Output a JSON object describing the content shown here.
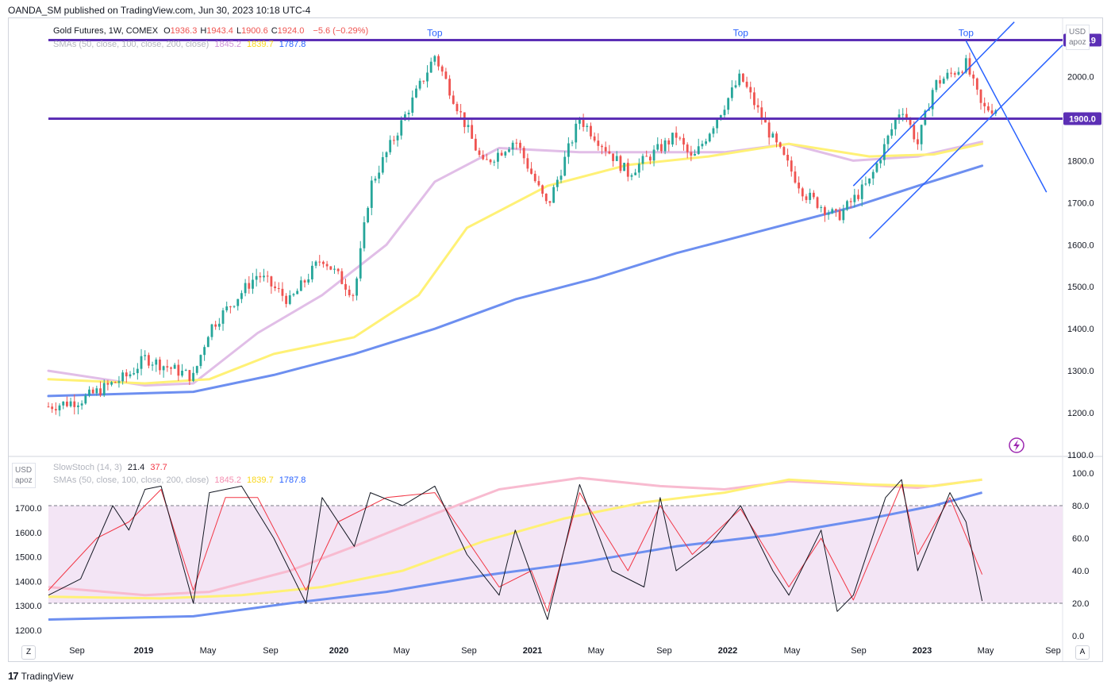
{
  "header": {
    "text": "OANDA_SM published on TradingView.com, Jun 30, 2023 10:18 UTC-4"
  },
  "footer": {
    "brand": "TradingView"
  },
  "legend": {
    "title": "Gold Futures, 1W, COMEX",
    "ohlc": [
      {
        "k": "O",
        "v": "1936.3"
      },
      {
        "k": "H",
        "v": "1943.4"
      },
      {
        "k": "L",
        "v": "1900.6"
      },
      {
        "k": "C",
        "v": "1924.0"
      }
    ],
    "change": "−5.6 (−0.29%)",
    "sma_label": "SMAs (50, close, 100, close, 200, close)",
    "sma_values": [
      "1845.2",
      "1839.7",
      "1787.8"
    ]
  },
  "stoch_legend": {
    "label": "SlowStoch (14, 3)",
    "k": "21.4",
    "d": "37.7",
    "sma_label": "SMAs (50, close, 100, close, 200, close)",
    "sma_values": [
      "1845.2",
      "1839.7",
      "1787.8"
    ]
  },
  "currency": "USD",
  "scale_mode": "apoz",
  "colors": {
    "up": "#26a69a",
    "down": "#ef5350",
    "sma50": "#e1bee7",
    "sma100": "#fff176",
    "sma200": "#6d8ff0",
    "hline": "#5c2fb5",
    "channel": "#2962ff",
    "k": "#131722",
    "d": "#f23645",
    "band": "#f3e5f5"
  },
  "price_axis": {
    "ticks": [
      "2000.0",
      "1900.0",
      "1800.0",
      "1700.0",
      "1600.0",
      "1500.0",
      "1400.0",
      "1300.0",
      "1200.0",
      "1100.0"
    ],
    "highlighted": [
      "2086.9",
      "1900.0"
    ]
  },
  "stoch_axis": {
    "ticks": [
      "100.0",
      "80.0",
      "60.0",
      "40.0",
      "20.0",
      "0.0"
    ]
  },
  "stoch_left_axis": {
    "ticks": [
      "1700.0",
      "1600.0",
      "1500.0",
      "1400.0",
      "1300.0",
      "1200.0"
    ]
  },
  "time_axis": {
    "labels": [
      "Sep",
      "2019",
      "May",
      "Sep",
      "2020",
      "May",
      "Sep",
      "2021",
      "May",
      "Sep",
      "2022",
      "May",
      "Sep",
      "2023",
      "May",
      "Sep"
    ]
  },
  "annotations": [
    "Top",
    "Top",
    "Top"
  ],
  "buttons": {
    "goto_start": "Z",
    "auto": "A"
  },
  "chart_data": {
    "type": "candlestick",
    "symbol": "Gold Futures, 1W, COMEX",
    "y_range": [
      1100,
      2120
    ],
    "resistance_levels": [
      2086.9,
      1900.0
    ],
    "key_points": [
      {
        "date": "2018-08",
        "close": 1215
      },
      {
        "date": "2018-10",
        "close": 1230
      },
      {
        "date": "2019-01",
        "close": 1290
      },
      {
        "date": "2019-02",
        "close": 1330
      },
      {
        "date": "2019-05",
        "close": 1285
      },
      {
        "date": "2019-06",
        "close": 1400
      },
      {
        "date": "2019-09",
        "close": 1530
      },
      {
        "date": "2019-11",
        "close": 1465
      },
      {
        "date": "2020-01",
        "close": 1570
      },
      {
        "date": "2020-03",
        "close": 1480
      },
      {
        "date": "2020-04",
        "close": 1740
      },
      {
        "date": "2020-08",
        "close": 2050
      },
      {
        "date": "2020-11",
        "close": 1790
      },
      {
        "date": "2021-01",
        "close": 1850
      },
      {
        "date": "2021-03",
        "close": 1690
      },
      {
        "date": "2021-05",
        "close": 1900
      },
      {
        "date": "2021-08",
        "close": 1770
      },
      {
        "date": "2021-11",
        "close": 1860
      },
      {
        "date": "2021-12",
        "close": 1800
      },
      {
        "date": "2022-03",
        "close": 2000
      },
      {
        "date": "2022-05",
        "close": 1850
      },
      {
        "date": "2022-07",
        "close": 1720
      },
      {
        "date": "2022-09",
        "close": 1665
      },
      {
        "date": "2022-11",
        "close": 1750
      },
      {
        "date": "2023-01",
        "close": 1930
      },
      {
        "date": "2023-02",
        "close": 1840
      },
      {
        "date": "2023-03",
        "close": 1980
      },
      {
        "date": "2023-05",
        "close": 2030
      },
      {
        "date": "2023-06",
        "close": 1924
      }
    ],
    "sma50": [
      {
        "date": "2018-08",
        "v": 1300
      },
      {
        "date": "2019-02",
        "v": 1265
      },
      {
        "date": "2019-05",
        "v": 1270
      },
      {
        "date": "2019-09",
        "v": 1390
      },
      {
        "date": "2020-01",
        "v": 1480
      },
      {
        "date": "2020-05",
        "v": 1600
      },
      {
        "date": "2020-08",
        "v": 1750
      },
      {
        "date": "2020-12",
        "v": 1830
      },
      {
        "date": "2021-05",
        "v": 1820
      },
      {
        "date": "2021-10",
        "v": 1820
      },
      {
        "date": "2022-02",
        "v": 1820
      },
      {
        "date": "2022-06",
        "v": 1840
      },
      {
        "date": "2022-10",
        "v": 1800
      },
      {
        "date": "2023-02",
        "v": 1810
      },
      {
        "date": "2023-06",
        "v": 1845
      }
    ],
    "sma100": [
      {
        "date": "2018-08",
        "v": 1280
      },
      {
        "date": "2019-02",
        "v": 1270
      },
      {
        "date": "2019-06",
        "v": 1280
      },
      {
        "date": "2019-10",
        "v": 1340
      },
      {
        "date": "2020-03",
        "v": 1380
      },
      {
        "date": "2020-07",
        "v": 1480
      },
      {
        "date": "2020-10",
        "v": 1640
      },
      {
        "date": "2021-03",
        "v": 1740
      },
      {
        "date": "2021-08",
        "v": 1790
      },
      {
        "date": "2022-01",
        "v": 1810
      },
      {
        "date": "2022-06",
        "v": 1840
      },
      {
        "date": "2022-11",
        "v": 1810
      },
      {
        "date": "2023-03",
        "v": 1815
      },
      {
        "date": "2023-06",
        "v": 1840
      }
    ],
    "sma200": [
      {
        "date": "2018-08",
        "v": 1240
      },
      {
        "date": "2019-05",
        "v": 1250
      },
      {
        "date": "2019-10",
        "v": 1290
      },
      {
        "date": "2020-03",
        "v": 1340
      },
      {
        "date": "2020-08",
        "v": 1400
      },
      {
        "date": "2021-01",
        "v": 1470
      },
      {
        "date": "2021-06",
        "v": 1520
      },
      {
        "date": "2021-11",
        "v": 1580
      },
      {
        "date": "2022-05",
        "v": 1640
      },
      {
        "date": "2022-10",
        "v": 1690
      },
      {
        "date": "2023-02",
        "v": 1740
      },
      {
        "date": "2023-06",
        "v": 1788
      }
    ],
    "stochastic": {
      "label": "SlowStoch (14, 3)",
      "levels": [
        80,
        20
      ],
      "k": [
        {
          "date": "2018-08",
          "v": 25
        },
        {
          "date": "2018-10",
          "v": 35
        },
        {
          "date": "2018-12",
          "v": 80
        },
        {
          "date": "2019-01",
          "v": 65
        },
        {
          "date": "2019-02",
          "v": 90
        },
        {
          "date": "2019-03",
          "v": 92
        },
        {
          "date": "2019-05",
          "v": 20
        },
        {
          "date": "2019-06",
          "v": 88
        },
        {
          "date": "2019-08",
          "v": 92
        },
        {
          "date": "2019-10",
          "v": 60
        },
        {
          "date": "2019-12",
          "v": 20
        },
        {
          "date": "2020-01",
          "v": 85
        },
        {
          "date": "2020-03",
          "v": 55
        },
        {
          "date": "2020-04",
          "v": 88
        },
        {
          "date": "2020-06",
          "v": 80
        },
        {
          "date": "2020-08",
          "v": 92
        },
        {
          "date": "2020-10",
          "v": 50
        },
        {
          "date": "2020-12",
          "v": 25
        },
        {
          "date": "2021-01",
          "v": 65
        },
        {
          "date": "2021-03",
          "v": 10
        },
        {
          "date": "2021-05",
          "v": 93
        },
        {
          "date": "2021-07",
          "v": 40
        },
        {
          "date": "2021-09",
          "v": 30
        },
        {
          "date": "2021-10",
          "v": 85
        },
        {
          "date": "2021-11",
          "v": 40
        },
        {
          "date": "2022-01",
          "v": 55
        },
        {
          "date": "2022-03",
          "v": 80
        },
        {
          "date": "2022-05",
          "v": 40
        },
        {
          "date": "2022-06",
          "v": 25
        },
        {
          "date": "2022-08",
          "v": 65
        },
        {
          "date": "2022-09",
          "v": 15
        },
        {
          "date": "2022-10",
          "v": 25
        },
        {
          "date": "2022-12",
          "v": 85
        },
        {
          "date": "2023-01",
          "v": 96
        },
        {
          "date": "2023-02",
          "v": 40
        },
        {
          "date": "2023-04",
          "v": 88
        },
        {
          "date": "2023-05",
          "v": 70
        },
        {
          "date": "2023-06",
          "v": 21.4
        }
      ],
      "d": [
        {
          "date": "2018-08",
          "v": 28
        },
        {
          "date": "2018-11",
          "v": 60
        },
        {
          "date": "2019-01",
          "v": 70
        },
        {
          "date": "2019-03",
          "v": 90
        },
        {
          "date": "2019-05",
          "v": 28
        },
        {
          "date": "2019-07",
          "v": 85
        },
        {
          "date": "2019-09",
          "v": 85
        },
        {
          "date": "2019-12",
          "v": 28
        },
        {
          "date": "2020-02",
          "v": 70
        },
        {
          "date": "2020-05",
          "v": 85
        },
        {
          "date": "2020-08",
          "v": 88
        },
        {
          "date": "2020-12",
          "v": 30
        },
        {
          "date": "2021-02",
          "v": 40
        },
        {
          "date": "2021-03",
          "v": 15
        },
        {
          "date": "2021-05",
          "v": 88
        },
        {
          "date": "2021-08",
          "v": 40
        },
        {
          "date": "2021-10",
          "v": 80
        },
        {
          "date": "2021-12",
          "v": 50
        },
        {
          "date": "2022-03",
          "v": 78
        },
        {
          "date": "2022-06",
          "v": 30
        },
        {
          "date": "2022-08",
          "v": 60
        },
        {
          "date": "2022-10",
          "v": 22
        },
        {
          "date": "2023-01",
          "v": 93
        },
        {
          "date": "2023-02",
          "v": 50
        },
        {
          "date": "2023-04",
          "v": 85
        },
        {
          "date": "2023-06",
          "v": 37.7
        }
      ]
    }
  }
}
